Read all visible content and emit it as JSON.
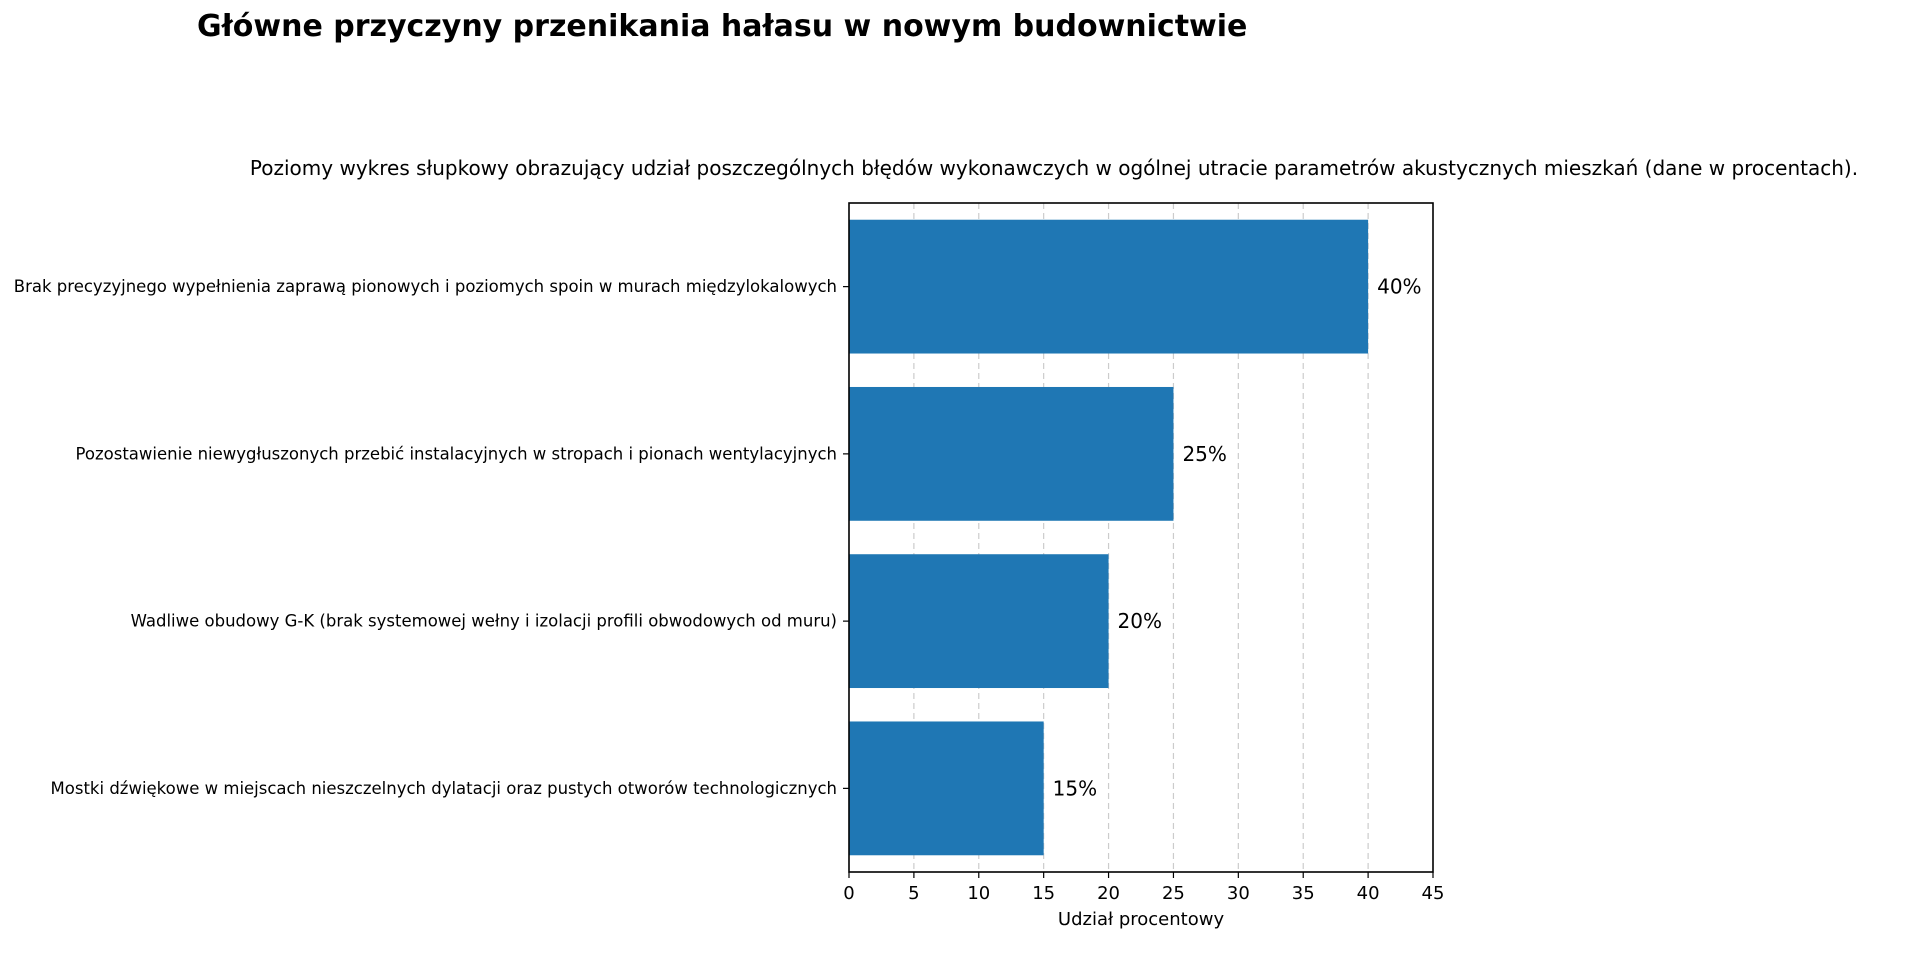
{
  "chart_data": {
    "type": "bar",
    "orientation": "horizontal",
    "title": "Główne przyczyny przenikania hałasu w nowym budownictwie",
    "subtitle": "Poziomy wykres słupkowy obrazujący udział poszczególnych błędów wykonawczych w ogólnej utracie parametrów akustycznych mieszkań (dane w procentach).",
    "xlabel": "Udział procentowy",
    "ylabel": "",
    "categories": [
      "Brak precyzyjnego wypełnienia zaprawą pionowych i poziomych spoin w murach międzylokalowych",
      "Pozostawienie niewygłuszonych przebić instalacyjnych w stropach i pionach wentylacyjnych",
      "Wadliwe obudowy G-K (brak systemowej wełny i izolacji profili obwodowych od muru)",
      "Mostki dźwiękowe w miejscach nieszczelnych dylatacji oraz pustych otworów technologicznych"
    ],
    "values": [
      40,
      25,
      20,
      15
    ],
    "data_labels": [
      "40%",
      "25%",
      "20%",
      "15%"
    ],
    "xlim": [
      0,
      45
    ],
    "xticks": [
      0,
      5,
      10,
      15,
      20,
      25,
      30,
      35,
      40,
      45
    ],
    "xtick_labels": [
      "0",
      "5",
      "10",
      "15",
      "20",
      "25",
      "30",
      "35",
      "40",
      "45"
    ],
    "grid": "x-dashed",
    "legend": "none",
    "bar_color": "#1f77b4"
  }
}
